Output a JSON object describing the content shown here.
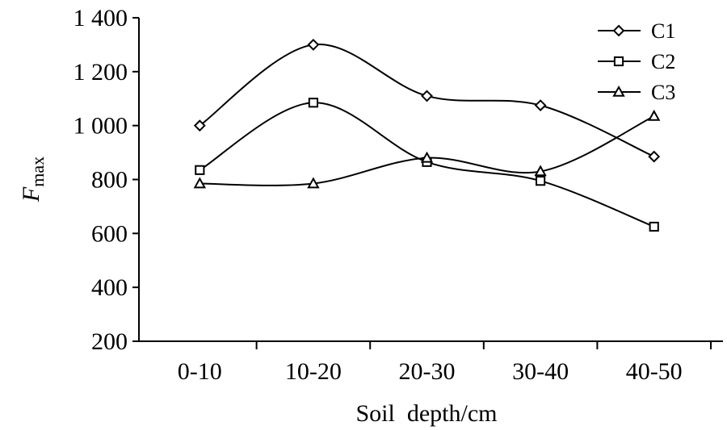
{
  "chart_data": {
    "type": "line",
    "categories": [
      "0-10",
      "10-20",
      "20-30",
      "30-40",
      "40-50"
    ],
    "series": [
      {
        "name": "C1",
        "marker": "diamond",
        "values": [
          1000,
          1300,
          1110,
          1075,
          885
        ]
      },
      {
        "name": "C2",
        "marker": "square",
        "values": [
          835,
          1085,
          865,
          795,
          625
        ]
      },
      {
        "name": "C3",
        "marker": "triangle",
        "values": [
          785,
          785,
          880,
          830,
          1035
        ]
      }
    ],
    "y_ticks": [
      200,
      400,
      600,
      800,
      1000,
      1200,
      1400
    ],
    "y_tick_labels": [
      "200",
      "400",
      "600",
      "800",
      "1 000",
      "1 200",
      "1 400"
    ],
    "ylim": [
      200,
      1400
    ],
    "xlabel": "Soil  depth/cm",
    "ylabel_main": "F",
    "ylabel_sub": "max",
    "smooth": true,
    "legend_position": "top-right",
    "grid": false,
    "line_color": "#000000"
  }
}
